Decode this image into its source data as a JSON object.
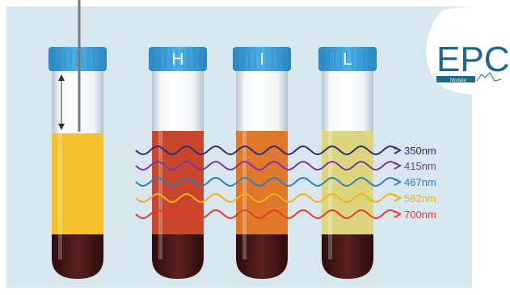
{
  "tubes": [
    {
      "id": "reference",
      "label": "",
      "serum_color": "#f4c12a",
      "has_needle": true
    },
    {
      "id": "hemolysis",
      "label": "H",
      "serum_color": "#c9452c",
      "has_needle": false
    },
    {
      "id": "icterus",
      "label": "I",
      "serum_color": "#e0782c",
      "has_needle": false
    },
    {
      "id": "lipemia",
      "label": "L",
      "serum_color": "#dcd57e",
      "has_needle": false
    }
  ],
  "wavelengths": [
    {
      "label": "350nm",
      "color": "#2d2f6e"
    },
    {
      "label": "415nm",
      "color": "#7a3a9a"
    },
    {
      "label": "467nm",
      "color": "#2f7fbf"
    },
    {
      "label": "582nm",
      "color": "#f2b21a"
    },
    {
      "label": "700nm",
      "color": "#e63b2e"
    }
  ],
  "logo": {
    "text": "EPC",
    "subtext": "Module",
    "color": "#1b6a8c"
  },
  "colors": {
    "background": "#d8e6ee",
    "cap": "#3aa0dc",
    "blood": "#4a1a1a",
    "glass": "#e8eef2"
  }
}
